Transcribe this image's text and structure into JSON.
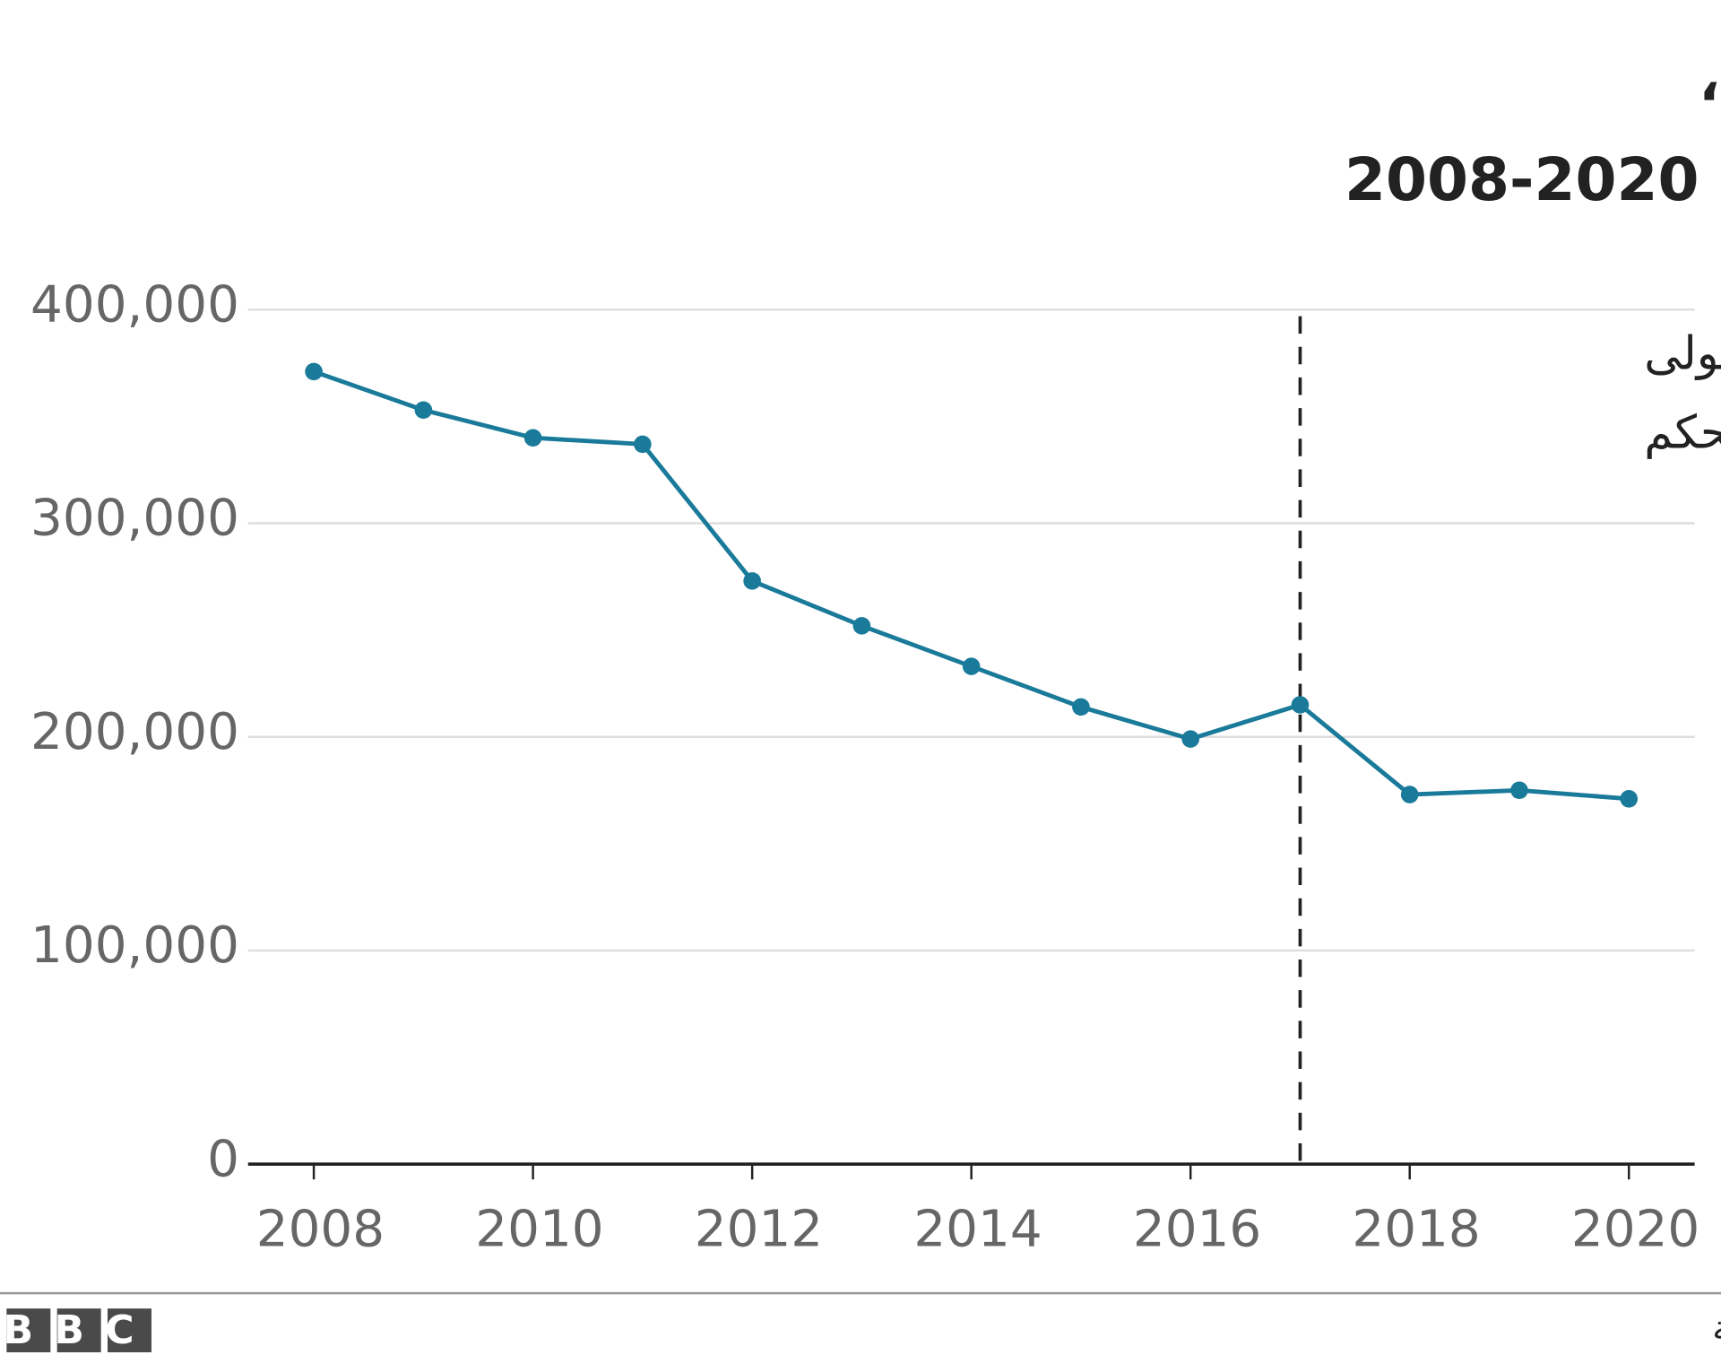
{
  "chart_data": {
    "type": "line",
    "title": [
      "عدد العسكريين الأمريكيين المتمركزين في الخارج،",
      "2008-2020"
    ],
    "x": [
      2008,
      2009,
      2010,
      2011,
      2012,
      2013,
      2014,
      2015,
      2016,
      2017,
      2018,
      2019,
      2020
    ],
    "series": [
      {
        "color": "#1a7a9a",
        "values": [
          371000,
          353000,
          340000,
          337000,
          273000,
          252000,
          233000,
          214000,
          199000,
          215000,
          173000,
          175000,
          171000
        ]
      }
    ],
    "xlim": [
      2007.4,
      2020.6
    ],
    "xticks": [
      2008,
      2010,
      2012,
      2014,
      2016,
      2018,
      2020
    ],
    "ylim": [
      0,
      400000
    ],
    "yticks": [
      0,
      {
        "value": 100000,
        "label": "100,000"
      },
      {
        "value": 200000,
        "label": "200,000"
      },
      {
        "value": 300000,
        "label": "300,000"
      },
      {
        "value": 400000,
        "label": "400,000"
      }
    ],
    "grid": true,
    "annotation": {
      "x": 2017,
      "lines": [
        "ترامب يتولى",
        "مقاليد الحكم"
      ]
    },
    "source": "المصدر: وزارة الدفاع الأمريكية",
    "logo": "BBC"
  }
}
